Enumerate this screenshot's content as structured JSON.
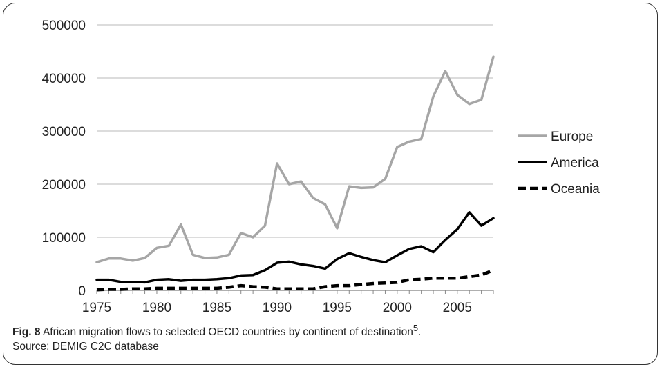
{
  "caption": {
    "figure_label": "Fig. 8",
    "text": "African migration flows to selected OECD countries by continent of destination",
    "superscript": "5",
    "end_mark": ".",
    "source": "Source: DEMIG C2C database"
  },
  "chart_data": {
    "type": "line",
    "title": "",
    "xlabel": "",
    "ylabel": "",
    "xlim": [
      1975,
      2008
    ],
    "ylim": [
      0,
      500000
    ],
    "grid": "horizontal",
    "legend_position": "right",
    "x": [
      1975,
      1976,
      1977,
      1978,
      1979,
      1980,
      1981,
      1982,
      1983,
      1984,
      1985,
      1986,
      1987,
      1988,
      1989,
      1990,
      1991,
      1992,
      1993,
      1994,
      1995,
      1996,
      1997,
      1998,
      1999,
      2000,
      2001,
      2002,
      2003,
      2004,
      2005,
      2006,
      2007,
      2008
    ],
    "x_ticks": [
      "1975",
      "1980",
      "1985",
      "1990",
      "1995",
      "2000",
      "2005"
    ],
    "y_ticks": [
      "0",
      "100000",
      "200000",
      "300000",
      "400000",
      "500000"
    ],
    "series": [
      {
        "name": "Europe",
        "color": "#a6a6a6",
        "style": "solid",
        "values": [
          53000,
          60000,
          60000,
          56000,
          61000,
          80000,
          84000,
          124000,
          67000,
          61000,
          62000,
          67000,
          108000,
          100000,
          122000,
          239000,
          200000,
          205000,
          174000,
          162000,
          117000,
          196000,
          193000,
          194000,
          210000,
          270000,
          280000,
          285000,
          365000,
          413000,
          368000,
          351000,
          359000,
          440000
        ]
      },
      {
        "name": "America",
        "color": "#000000",
        "style": "solid",
        "values": [
          20000,
          20000,
          16000,
          16000,
          15000,
          20000,
          21000,
          18000,
          20000,
          20000,
          21000,
          23000,
          28000,
          29000,
          38000,
          52000,
          54000,
          49000,
          46000,
          41000,
          59000,
          70000,
          63000,
          57000,
          53000,
          66000,
          78000,
          83000,
          72000,
          95000,
          115000,
          147000,
          122000,
          136000
        ]
      },
      {
        "name": "Oceania",
        "color": "#000000",
        "style": "dashed",
        "values": [
          1000,
          2000,
          2000,
          3000,
          3000,
          4000,
          4000,
          4000,
          4000,
          4000,
          4000,
          6000,
          9000,
          7000,
          6000,
          3000,
          3000,
          3000,
          3000,
          7000,
          9000,
          9000,
          11000,
          13000,
          14000,
          15000,
          20000,
          21000,
          23000,
          23000,
          23000,
          26000,
          29000,
          38000
        ]
      }
    ]
  }
}
